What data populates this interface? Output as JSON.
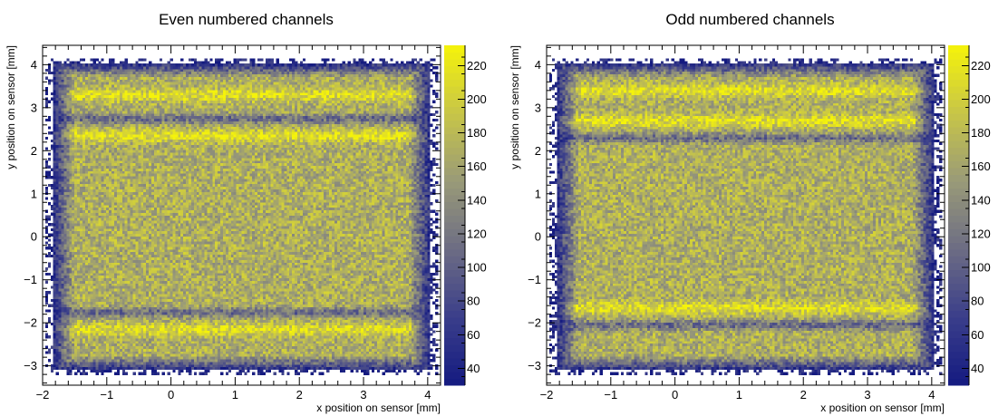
{
  "chart_data": [
    {
      "type": "heatmap",
      "title": "Even numbered channels",
      "xlabel": "x position on sensor [mm]",
      "ylabel": "y position on sensor [mm]",
      "xlim": [
        -2.0,
        4.2
      ],
      "ylim": [
        -3.45,
        4.45
      ],
      "x_ticks": [
        -2,
        -1,
        0,
        1,
        2,
        3,
        4
      ],
      "y_ticks": [
        -3,
        -2,
        -1,
        0,
        1,
        2,
        3,
        4
      ],
      "x_tick_labels": [
        "−2",
        "−1",
        "0",
        "1",
        "2",
        "3",
        "4"
      ],
      "y_tick_labels": [
        "−3",
        "−2",
        "−1",
        "0",
        "1",
        "2",
        "3",
        "4"
      ],
      "z_range": [
        30,
        232
      ],
      "colorbar_ticks": [
        40,
        60,
        80,
        100,
        120,
        140,
        160,
        180,
        200,
        220
      ],
      "colormap": [
        "#141a80",
        "#3a3e8a",
        "#6c6c84",
        "#999a78",
        "#c7c548",
        "#f5f30a"
      ],
      "bins": [
        150,
        130
      ],
      "occupied_region": {
        "x": [
          -1.85,
          4.05
        ],
        "y": [
          -3.1,
          4.05
        ]
      },
      "bright_bands_y": [
        3.3,
        2.35,
        -2.15
      ],
      "dark_bands_y": [
        2.75,
        -1.75
      ],
      "typical_counts": {
        "bulk": 170,
        "bright_band": 215,
        "dark_band": 110,
        "edge": 45
      },
      "grid": false
    },
    {
      "type": "heatmap",
      "title": "Odd numbered channels",
      "xlabel": "x position on sensor [mm]",
      "ylabel": "y position on sensor [mm]",
      "xlim": [
        -2.0,
        4.2
      ],
      "ylim": [
        -3.45,
        4.45
      ],
      "x_ticks": [
        -2,
        -1,
        0,
        1,
        2,
        3,
        4
      ],
      "y_ticks": [
        -3,
        -2,
        -1,
        0,
        1,
        2,
        3,
        4
      ],
      "x_tick_labels": [
        "−2",
        "−1",
        "0",
        "1",
        "2",
        "3",
        "4"
      ],
      "y_tick_labels": [
        "−3",
        "−2",
        "−1",
        "0",
        "1",
        "2",
        "3",
        "4"
      ],
      "z_range": [
        30,
        232
      ],
      "colorbar_ticks": [
        40,
        60,
        80,
        100,
        120,
        140,
        160,
        180,
        200,
        220
      ],
      "colormap": [
        "#141a80",
        "#3a3e8a",
        "#6c6c84",
        "#999a78",
        "#c7c548",
        "#f5f30a"
      ],
      "bins": [
        150,
        130
      ],
      "occupied_region": {
        "x": [
          -1.85,
          4.05
        ],
        "y": [
          -3.1,
          4.05
        ]
      },
      "bright_bands_y": [
        3.4,
        2.7,
        -1.65
      ],
      "dark_bands_y": [
        2.3,
        -2.05
      ],
      "typical_counts": {
        "bulk": 170,
        "bright_band": 215,
        "dark_band": 110,
        "edge": 45
      },
      "grid": false
    }
  ]
}
